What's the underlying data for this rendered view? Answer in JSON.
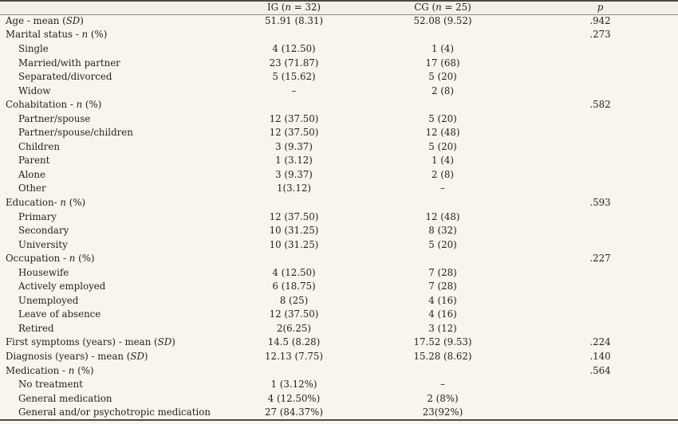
{
  "table": {
    "columns": [
      {
        "key": "label",
        "label": ""
      },
      {
        "key": "ig",
        "label": "IG (*n* = 32)"
      },
      {
        "key": "cg",
        "label": "CG (*n* = 25)"
      },
      {
        "key": "p",
        "label": "*p*"
      }
    ],
    "rows": [
      {
        "label": "Age - mean (*SD*)",
        "indent": false,
        "ig": "51.91 (8.31)",
        "cg": "52.08 (9.52)",
        "p": ".942"
      },
      {
        "label": "Marital status - *n* (%)",
        "indent": false,
        "ig": "",
        "cg": "",
        "p": ".273"
      },
      {
        "label": "Single",
        "indent": true,
        "ig": "4 (12.50)",
        "cg": "1 (4)",
        "p": ""
      },
      {
        "label": "Married/with partner",
        "indent": true,
        "ig": "23 (71.87)",
        "cg": "17 (68)",
        "p": ""
      },
      {
        "label": "Separated/divorced",
        "indent": true,
        "ig": "5 (15.62)",
        "cg": "5 (20)",
        "p": ""
      },
      {
        "label": "Widow",
        "indent": true,
        "ig": "–",
        "cg": "2 (8)",
        "p": ""
      },
      {
        "label": "Cohabitation - *n* (%)",
        "indent": false,
        "ig": "",
        "cg": "",
        "p": ".582"
      },
      {
        "label": "Partner/spouse",
        "indent": true,
        "ig": "12 (37.50)",
        "cg": "5 (20)",
        "p": ""
      },
      {
        "label": "Partner/spouse/children",
        "indent": true,
        "ig": "12 (37.50)",
        "cg": "12 (48)",
        "p": ""
      },
      {
        "label": "Children",
        "indent": true,
        "ig": "3 (9.37)",
        "cg": "5 (20)",
        "p": ""
      },
      {
        "label": "Parent",
        "indent": true,
        "ig": "1 (3.12)",
        "cg": "1 (4)",
        "p": ""
      },
      {
        "label": "Alone",
        "indent": true,
        "ig": "3 (9.37)",
        "cg": "2 (8)",
        "p": ""
      },
      {
        "label": "Other",
        "indent": true,
        "ig": "1(3.12)",
        "cg": "–",
        "p": ""
      },
      {
        "label": "Education- *n* (%)",
        "indent": false,
        "ig": "",
        "cg": "",
        "p": ".593"
      },
      {
        "label": "Primary",
        "indent": true,
        "ig": "12 (37.50)",
        "cg": "12 (48)",
        "p": ""
      },
      {
        "label": "Secondary",
        "indent": true,
        "ig": "10 (31.25)",
        "cg": "8 (32)",
        "p": ""
      },
      {
        "label": "University",
        "indent": true,
        "ig": "10 (31.25)",
        "cg": "5 (20)",
        "p": ""
      },
      {
        "label": "Occupation - *n* (%)",
        "indent": false,
        "ig": "",
        "cg": "",
        "p": ".227"
      },
      {
        "label": "Housewife",
        "indent": true,
        "ig": "4 (12.50)",
        "cg": "7 (28)",
        "p": ""
      },
      {
        "label": "Actively employed",
        "indent": true,
        "ig": "6 (18.75)",
        "cg": "7 (28)",
        "p": ""
      },
      {
        "label": "Unemployed",
        "indent": true,
        "ig": "8 (25)",
        "cg": "4 (16)",
        "p": ""
      },
      {
        "label": "Leave of absence",
        "indent": true,
        "ig": "12 (37.50)",
        "cg": "4 (16)",
        "p": ""
      },
      {
        "label": "Retired",
        "indent": true,
        "ig": "2(6.25)",
        "cg": "3 (12)",
        "p": ""
      },
      {
        "label": "First symptoms (years) - mean (*SD*)",
        "indent": false,
        "ig": "14.5 (8.28)",
        "cg": "17.52 (9.53)",
        "p": ".224"
      },
      {
        "label": "Diagnosis (years) - mean (*SD*)",
        "indent": false,
        "ig": "12.13 (7.75)",
        "cg": "15.28 (8.62)",
        "p": ".140"
      },
      {
        "label": "Medication - *n* (%)",
        "indent": false,
        "ig": "",
        "cg": "",
        "p": ".564"
      },
      {
        "label": "No treatment",
        "indent": true,
        "ig": "1 (3.12%)",
        "cg": "–",
        "p": ""
      },
      {
        "label": "General medication",
        "indent": true,
        "ig": "4 (12.50%)",
        "cg": "2 (8%)",
        "p": ""
      },
      {
        "label": "General and/or psychotropic medication",
        "indent": true,
        "ig": "27 (84.37%)",
        "cg": "23(92%)",
        "p": ""
      }
    ]
  },
  "colors": {
    "background": "#f9f5ed",
    "header_background": "#f4f0e8",
    "text": "#211f1c",
    "rule_heavy": "#4e4a44",
    "rule_light": "#918d85"
  }
}
